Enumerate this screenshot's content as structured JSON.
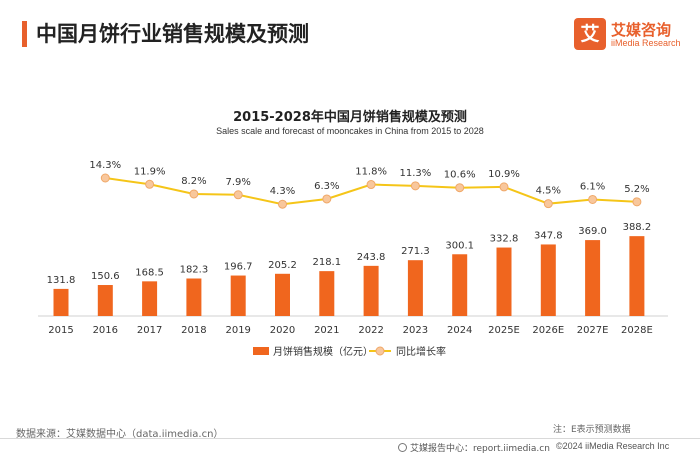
{
  "header": {
    "title": "中国月饼行业销售规模及预测",
    "logo_cn": "艾媒咨询",
    "logo_en": "iiMedia Research",
    "logo_mark": "艾"
  },
  "colors": {
    "accent": "#e8602c",
    "bar": "#f0661e",
    "line": "#f5c518",
    "marker_fill": "#f8c79c"
  },
  "chart_data": {
    "type": "bar",
    "title": "2015-2028年中国月饼销售规模及预测",
    "subtitle": "Sales scale and forecast of mooncakes in China from 2015 to 2028",
    "categories": [
      "2015",
      "2016",
      "2017",
      "2018",
      "2019",
      "2020",
      "2021",
      "2022",
      "2023",
      "2024",
      "2025E",
      "2026E",
      "2027E",
      "2028E"
    ],
    "series": [
      {
        "name": "月饼销售规模（亿元）",
        "type": "bar",
        "values": [
          131.8,
          150.6,
          168.5,
          182.3,
          196.7,
          205.2,
          218.1,
          243.8,
          271.3,
          300.1,
          332.8,
          347.8,
          369.0,
          388.2
        ],
        "labels": [
          "131.8",
          "150.6",
          "168.5",
          "182.3",
          "196.7",
          "205.2",
          "218.1",
          "243.8",
          "271.3",
          "300.1",
          "332.8",
          "347.8",
          "369.0",
          "388.2"
        ]
      },
      {
        "name": "同比增长率",
        "type": "line",
        "values": [
          null,
          14.3,
          11.9,
          8.2,
          7.9,
          4.3,
          6.3,
          11.8,
          11.3,
          10.6,
          10.9,
          4.5,
          6.1,
          5.2
        ],
        "labels": [
          "",
          "14.3%",
          "11.9%",
          "8.2%",
          "7.9%",
          "4.3%",
          "6.3%",
          "11.8%",
          "11.3%",
          "10.6%",
          "10.9%",
          "4.5%",
          "6.1%",
          "5.2%"
        ]
      }
    ],
    "legend": "bottom-center"
  },
  "footer": {
    "source": "数据来源：艾媒数据中心（data.iimedia.cn）",
    "note": "注：E表示预测数据",
    "center": "艾媒报告中心：report.iimedia.cn",
    "copyright": "©2024  iiMedia Research  Inc"
  }
}
